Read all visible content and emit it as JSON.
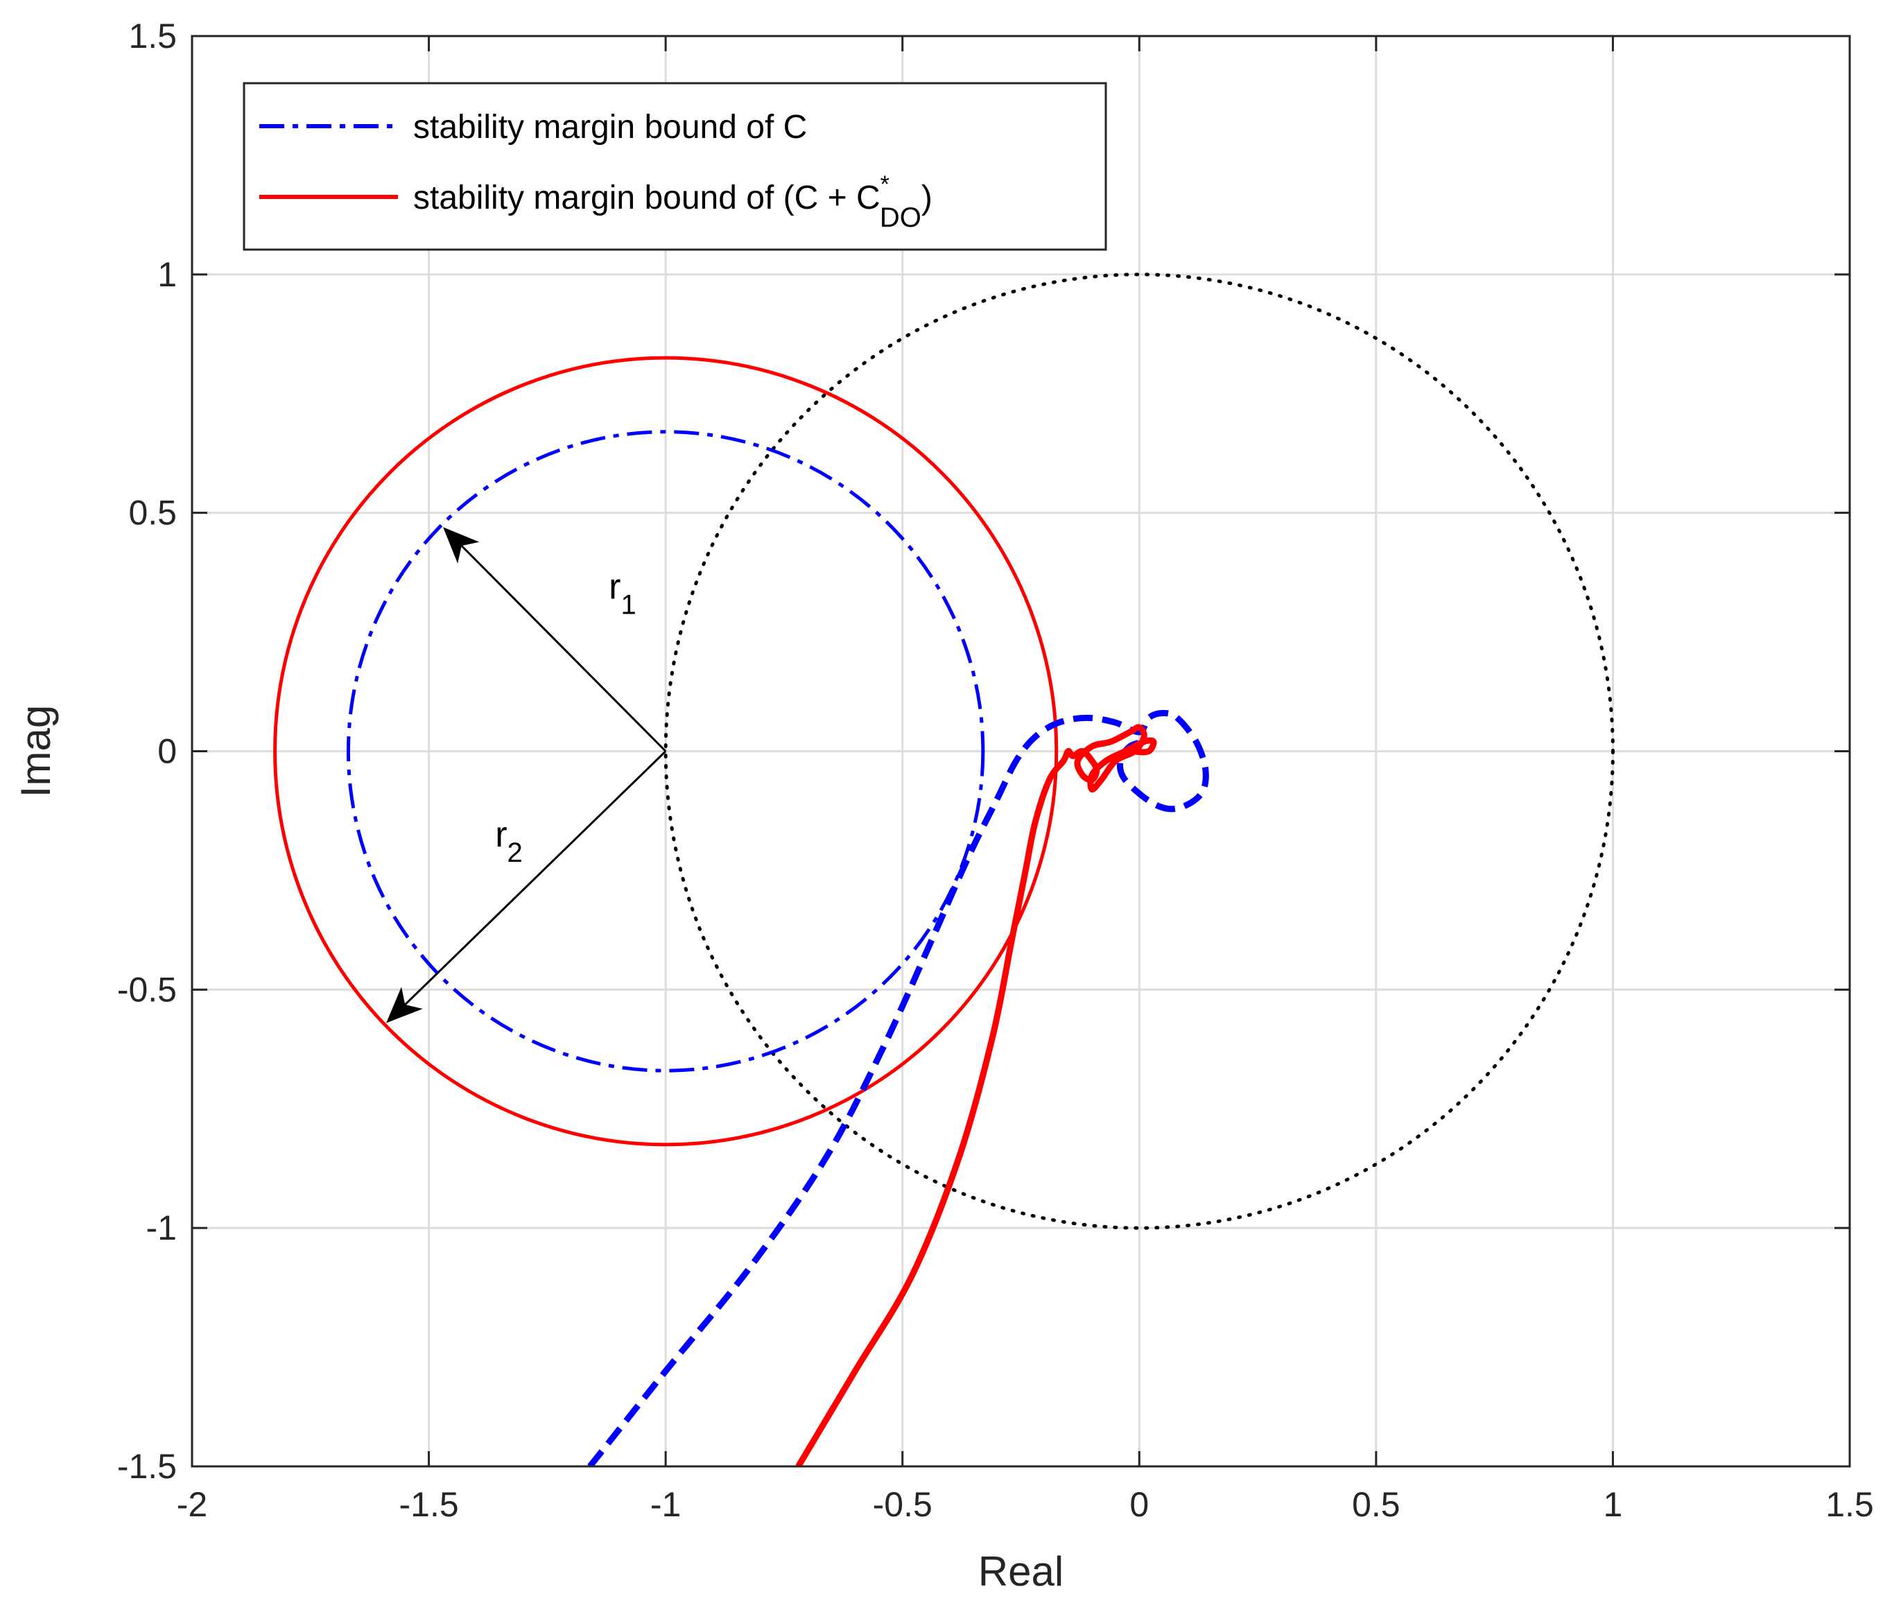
{
  "chart_data": {
    "type": "line",
    "title": "",
    "xlabel": "Real",
    "ylabel": "Imag",
    "xlim": [
      -2,
      1.5
    ],
    "ylim": [
      -1.5,
      1.5
    ],
    "xticks": [
      -2,
      -1.5,
      -1,
      -0.5,
      0,
      0.5,
      1,
      1.5
    ],
    "yticks": [
      -1.5,
      -1,
      -0.5,
      0,
      0.5,
      1,
      1.5
    ],
    "xtick_labels": [
      "-2",
      "-1.5",
      "-1",
      "-0.5",
      "0",
      "0.5",
      "1",
      "1.5"
    ],
    "ytick_labels": [
      "-1.5",
      "-1",
      "-0.5",
      "0",
      "0.5",
      "1",
      "1.5"
    ],
    "grid": true,
    "legend_position": "top-left",
    "legend": [
      {
        "label": "stability margin bound of C",
        "color": "#0000ff",
        "style": "dash-dot"
      },
      {
        "label_prefix": "stability margin bound of (C + C",
        "label_superscript": "*",
        "label_subscript": "DO",
        "label_suffix": ")",
        "color": "#ff0000",
        "style": "solid"
      }
    ],
    "circles": [
      {
        "name": "unit circle",
        "center": [
          0,
          0
        ],
        "radius": 1,
        "color": "#000000",
        "style": "dotted"
      },
      {
        "name": "stability margin bound of C",
        "center": [
          -1,
          0
        ],
        "radius": 0.67,
        "color": "#0000ff",
        "style": "dash-dot"
      },
      {
        "name": "stability margin bound of (C + C*DO)",
        "center": [
          -1,
          0
        ],
        "radius": 0.825,
        "color": "#ff0000",
        "style": "solid"
      }
    ],
    "series": [
      {
        "name": "Nyquist curve with C",
        "color": "#0000ff",
        "style": "dashed",
        "x": [
          -1.16,
          -1.0,
          -0.82,
          -0.66,
          -0.54,
          -0.44,
          -0.36,
          -0.3,
          -0.26,
          -0.22,
          -0.17,
          -0.11,
          -0.05,
          0.0,
          0.02,
          0.05,
          0.08,
          0.12,
          0.14,
          0.13,
          0.08,
          0.03,
          -0.03,
          -0.04,
          -0.02,
          0.01
        ],
        "y": [
          -1.5,
          -1.3,
          -1.08,
          -0.85,
          -0.62,
          -0.4,
          -0.22,
          -0.1,
          -0.02,
          0.03,
          0.06,
          0.07,
          0.06,
          0.04,
          0.07,
          0.08,
          0.07,
          0.02,
          -0.04,
          -0.09,
          -0.12,
          -0.11,
          -0.06,
          -0.02,
          0.01,
          0.02
        ]
      },
      {
        "name": "Nyquist curve with C + C*DO",
        "color": "#ff0000",
        "style": "solid",
        "x": [
          -0.72,
          -0.6,
          -0.48,
          -0.38,
          -0.31,
          -0.27,
          -0.24,
          -0.22,
          -0.19,
          -0.16,
          -0.15,
          -0.14,
          -0.12,
          -0.1,
          -0.09,
          -0.1,
          -0.12,
          -0.13,
          -0.1,
          -0.06,
          -0.02,
          0.0,
          0.01,
          -0.01,
          -0.05,
          -0.08,
          -0.1,
          -0.1,
          -0.07,
          -0.03,
          0.01,
          0.03,
          0.02,
          -0.01,
          0.0
        ],
        "y": [
          -1.5,
          -1.3,
          -1.1,
          -0.85,
          -0.6,
          -0.4,
          -0.25,
          -0.15,
          -0.06,
          -0.02,
          0.0,
          -0.01,
          0.0,
          -0.02,
          -0.04,
          -0.06,
          -0.05,
          -0.02,
          0.01,
          0.02,
          0.04,
          0.05,
          0.03,
          0.0,
          -0.02,
          -0.06,
          -0.08,
          -0.05,
          -0.02,
          0.0,
          0.02,
          0.02,
          0.0,
          0.0,
          0.01
        ]
      }
    ],
    "annotations": [
      {
        "label_base": "r",
        "label_sub": "1",
        "arrow_from": [
          -1,
          0
        ],
        "arrow_to": [
          -1.47,
          0.47
        ],
        "label_at": [
          -1.12,
          0.32
        ]
      },
      {
        "label_base": "r",
        "label_sub": "2",
        "arrow_from": [
          -1,
          0
        ],
        "arrow_to": [
          -1.59,
          -0.57
        ],
        "label_at": [
          -1.36,
          -0.2
        ]
      }
    ]
  }
}
